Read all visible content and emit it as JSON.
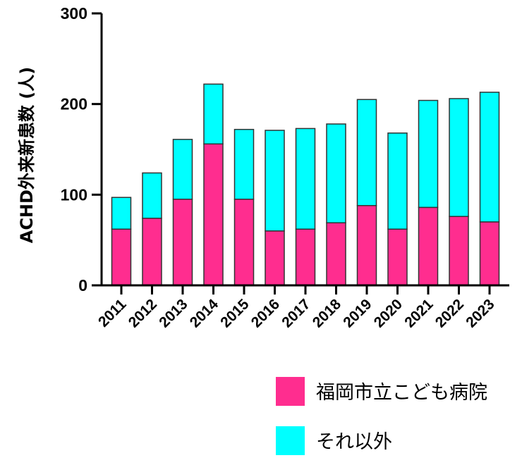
{
  "chart_data": {
    "type": "bar",
    "stacked": true,
    "ylabel": "ACHD外来新患数 (人)",
    "xlabel": "",
    "ylim": [
      0,
      300
    ],
    "yticks": [
      0,
      100,
      200,
      300
    ],
    "categories": [
      "2011",
      "2012",
      "2013",
      "2014",
      "2015",
      "2016",
      "2017",
      "2018",
      "2019",
      "2020",
      "2021",
      "2022",
      "2023"
    ],
    "series": [
      {
        "name": "福岡市立こども病院",
        "color": "#ff2d8f",
        "values": [
          62,
          74,
          95,
          156,
          95,
          60,
          62,
          69,
          88,
          62,
          86,
          76,
          70
        ]
      },
      {
        "name": "それ以外",
        "color": "#00ffff",
        "values": [
          35,
          50,
          66,
          66,
          77,
          111,
          111,
          109,
          117,
          106,
          118,
          130,
          143
        ]
      }
    ],
    "legend_position": "bottom-right",
    "grid": false
  }
}
